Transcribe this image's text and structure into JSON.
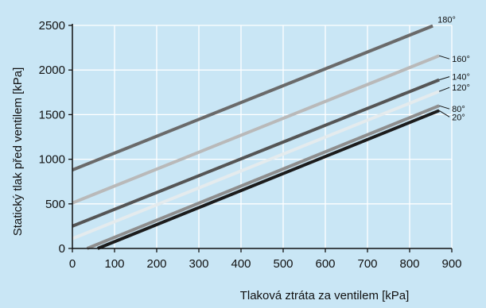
{
  "chart_data": {
    "type": "line",
    "title": "",
    "xlabel": "Tlaková ztráta za ventilem [kPa]",
    "ylabel": "Statický tlak před ventilem [kPa]",
    "xlim": [
      0,
      900
    ],
    "ylim": [
      0,
      2500
    ],
    "xticks": [
      "0",
      "100",
      "200",
      "300",
      "400",
      "500",
      "600",
      "700",
      "800",
      "900"
    ],
    "yticks": [
      "0",
      "500",
      "1000",
      "1500",
      "2000",
      "2500"
    ],
    "grid": true,
    "background": "#c9e6f5",
    "plot_background": "#c9e6f5",
    "grid_color": "#ffffff",
    "series": [
      {
        "name": "180°",
        "color": "#6a6a6a",
        "x": [
          0,
          855
        ],
        "y": [
          880,
          2495
        ]
      },
      {
        "name": "160°",
        "color": "#b9b9b9",
        "x": [
          0,
          870
        ],
        "y": [
          510,
          2160
        ]
      },
      {
        "name": "140°",
        "color": "#555555",
        "x": [
          0,
          870
        ],
        "y": [
          250,
          1890
        ]
      },
      {
        "name": "120°",
        "color": "#e4ebee",
        "x": [
          0,
          870
        ],
        "y": [
          110,
          1760
        ]
      },
      {
        "name": "80°",
        "color": "#8e8e8e",
        "x": [
          35,
          870
        ],
        "y": [
          0,
          1600
        ]
      },
      {
        "name": "20°",
        "color": "#1c1c1c",
        "x": [
          60,
          870
        ],
        "y": [
          0,
          1545
        ]
      }
    ]
  }
}
